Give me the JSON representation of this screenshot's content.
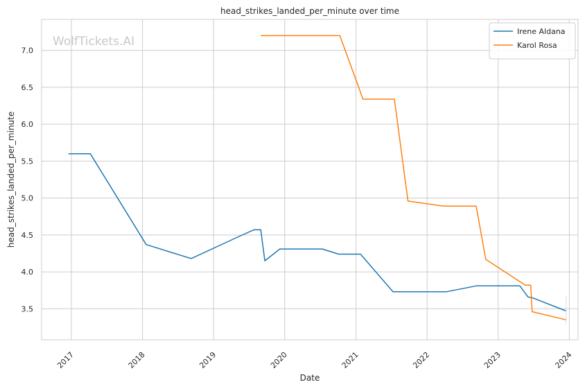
{
  "chart_data": {
    "type": "line",
    "title": "head_strikes_landed_per_minute over time",
    "xlabel": "Date",
    "ylabel": "head_strikes_landed_per_minute",
    "watermark": "WolfTickets.AI",
    "xlim": [
      "2016-08-01",
      "2024-02-15"
    ],
    "ylim": [
      3.08,
      7.42
    ],
    "x_ticks": [
      "2017-01-01",
      "2018-01-01",
      "2019-01-01",
      "2020-01-01",
      "2021-01-01",
      "2022-01-01",
      "2023-01-01",
      "2024-01-01"
    ],
    "x_tick_labels": [
      "2017",
      "2018",
      "2019",
      "2020",
      "2021",
      "2022",
      "2023",
      "2024"
    ],
    "y_ticks": [
      3.5,
      4.0,
      4.5,
      5.0,
      5.5,
      6.0,
      6.5,
      7.0
    ],
    "y_tick_labels": [
      "3.5",
      "4.0",
      "4.5",
      "5.0",
      "5.5",
      "6.0",
      "6.5",
      "7.0"
    ],
    "grid": true,
    "legend_position": "top-right",
    "series": [
      {
        "name": "Irene Aldana",
        "color": "#1f77b4",
        "points": [
          [
            "2016-12-17",
            5.6
          ],
          [
            "2017-04-08",
            5.6
          ],
          [
            "2018-01-20",
            4.37
          ],
          [
            "2018-09-08",
            4.18
          ],
          [
            "2019-05-04",
            4.47
          ],
          [
            "2019-07-27",
            4.57
          ],
          [
            "2019-08-31",
            4.57
          ],
          [
            "2019-09-21",
            4.15
          ],
          [
            "2019-12-07",
            4.31
          ],
          [
            "2020-07-12",
            4.31
          ],
          [
            "2020-10-04",
            4.24
          ],
          [
            "2021-01-24",
            4.24
          ],
          [
            "2021-07-10",
            3.73
          ],
          [
            "2022-04-09",
            3.73
          ],
          [
            "2022-09-10",
            3.81
          ],
          [
            "2023-04-22",
            3.81
          ],
          [
            "2023-06-03",
            3.66
          ],
          [
            "2023-06-24",
            3.65
          ],
          [
            "2023-12-16",
            3.47
          ]
        ]
      },
      {
        "name": "Karol Rosa",
        "color": "#ff7f0e",
        "points": [
          [
            "2019-08-31",
            7.2
          ],
          [
            "2020-10-10",
            7.2
          ],
          [
            "2021-02-06",
            6.34
          ],
          [
            "2021-07-17",
            6.34
          ],
          [
            "2021-09-25",
            4.96
          ],
          [
            "2022-03-26",
            4.89
          ],
          [
            "2022-09-10",
            4.89
          ],
          [
            "2022-10-29",
            4.17
          ],
          [
            "2023-05-20",
            3.82
          ],
          [
            "2023-06-17",
            3.82
          ],
          [
            "2023-06-24",
            3.46
          ],
          [
            "2023-12-16",
            3.35
          ]
        ]
      }
    ]
  }
}
